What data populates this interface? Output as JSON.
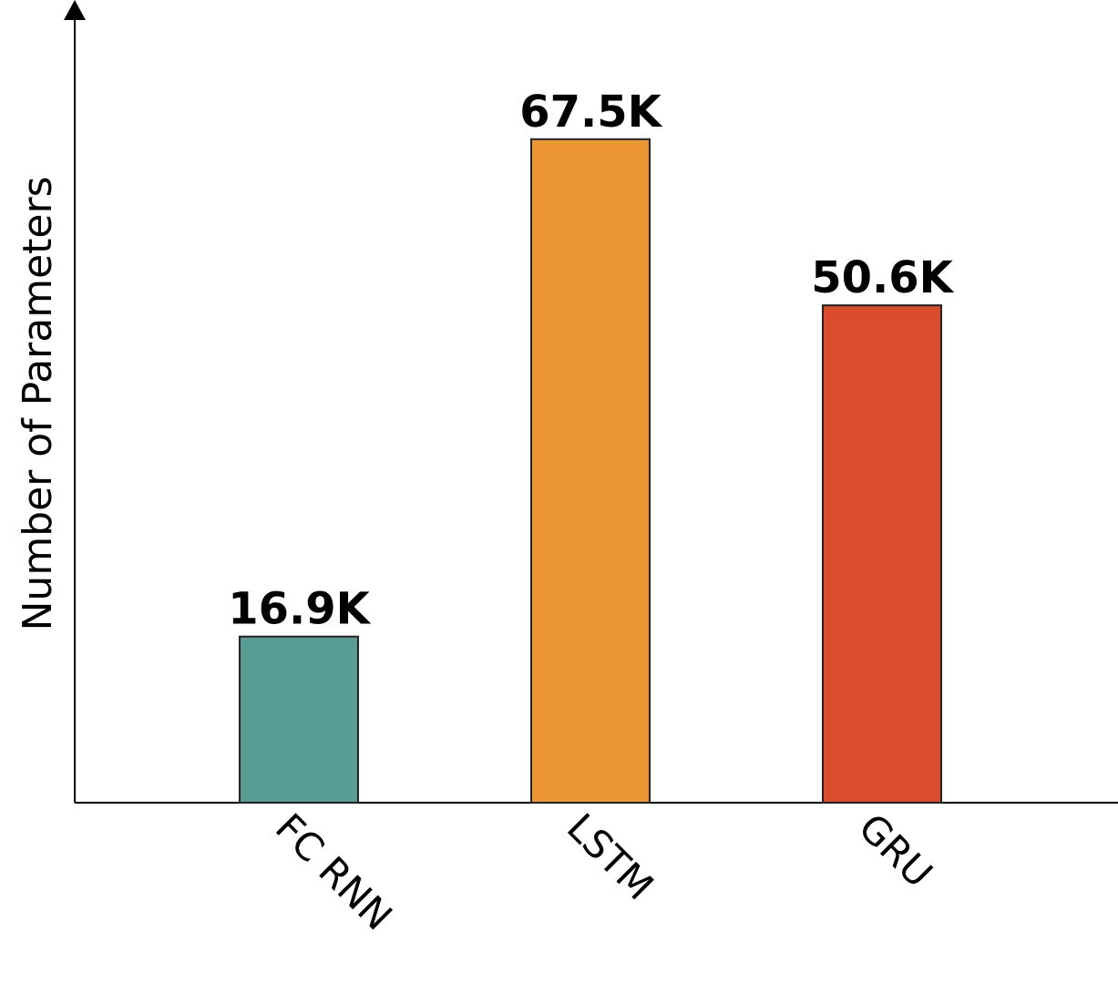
{
  "chart_data": {
    "type": "bar",
    "y_label": "Number of Parameters",
    "categories": [
      "FC RNN",
      "LSTM",
      "GRU"
    ],
    "values": [
      16900,
      67500,
      50600
    ],
    "value_labels": [
      "16.9K",
      "67.5K",
      "50.6K"
    ],
    "colors": [
      "#589c94",
      "#ec9633",
      "#db4c2c"
    ],
    "ylim": [
      0,
      81200
    ]
  }
}
